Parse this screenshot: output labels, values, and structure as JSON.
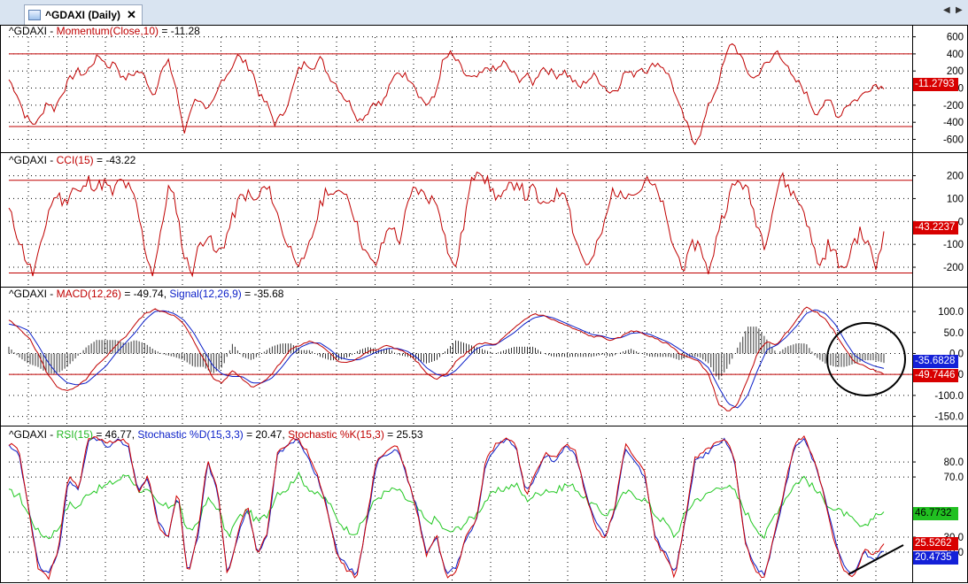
{
  "tab": {
    "label": "^GDAXI (Daily)",
    "close": "✕",
    "left_arrow": "◀",
    "right_arrow": "▶"
  },
  "colors": {
    "momentum": "#c00000",
    "cci": "#c00000",
    "macd": "#c00000",
    "signal": "#0a1ec8",
    "hist": "#000000",
    "rsi": "#22c822",
    "stochd": "#0a1ec8",
    "stochk": "#d00000",
    "grid_dot": "#000000"
  },
  "panes": {
    "momentum": {
      "title": [
        {
          "t": "^GDAXI - ",
          "c": "blk"
        },
        {
          "t": "Momentum(Close,10)",
          "c": "red"
        },
        {
          "t": " = -11.28",
          "c": "blk"
        }
      ],
      "tick_labels": [
        "600",
        "400",
        "200",
        "0",
        "-200",
        "-400",
        "-600"
      ],
      "ticks": [
        600,
        400,
        200,
        0,
        -200,
        -400,
        -600
      ],
      "ylim": [
        -750,
        720
      ],
      "ref_lines": [
        400,
        -450
      ],
      "last_label": "-11.2793",
      "last_value": -11.28
    },
    "cci": {
      "title": [
        {
          "t": "^GDAXI - ",
          "c": "blk"
        },
        {
          "t": "CCI(15)",
          "c": "red"
        },
        {
          "t": " = -43.22",
          "c": "blk"
        }
      ],
      "tick_labels": [
        "200",
        "100",
        "0",
        "-100",
        "-200"
      ],
      "ticks": [
        200,
        100,
        0,
        -100,
        -200
      ],
      "ylim": [
        -285,
        295
      ],
      "ref_lines": [
        180,
        -225
      ],
      "last_label": "-43.2237",
      "last_value": -43.22
    },
    "macd": {
      "title": [
        {
          "t": "^GDAXI - ",
          "c": "blk"
        },
        {
          "t": "MACD(12,26)",
          "c": "red"
        },
        {
          "t": " = -49.74, ",
          "c": "blk"
        },
        {
          "t": "Signal(12,26,9)",
          "c": "blu"
        },
        {
          "t": " = -35.68",
          "c": "blk"
        }
      ],
      "tick_labels": [
        "100.0",
        "50.0",
        "0.0",
        "-50.0",
        "-100.0",
        "-150.0"
      ],
      "ticks": [
        100,
        50,
        0,
        -50,
        -100,
        -150
      ],
      "ylim": [
        -172,
        155
      ],
      "ref_lines": [
        -50
      ],
      "last_macd_label": "-49.7446",
      "last_signal_label": "-35.6828",
      "last_macd": -49.74,
      "last_signal": -35.68
    },
    "rsi": {
      "title": [
        {
          "t": "^GDAXI - ",
          "c": "blk"
        },
        {
          "t": "RSI(15)",
          "c": "grn"
        },
        {
          "t": " = 46.77, ",
          "c": "blk"
        },
        {
          "t": "Stochastic %D(15,3,3)",
          "c": "blu"
        },
        {
          "t": " = 20.47, ",
          "c": "blk"
        },
        {
          "t": "Stochastic %K(15,3)",
          "c": "red"
        },
        {
          "t": " = 25.53",
          "c": "blk"
        }
      ],
      "tick_labels": [
        "80.0",
        "70.0",
        "30.0",
        "20.0"
      ],
      "ticks": [
        80,
        70,
        30,
        20
      ],
      "ylim": [
        0,
        103
      ],
      "last_rsi_label": "46.7732",
      "last_d_label": "20.4735",
      "last_k_label": "25.5262",
      "last_rsi": 46.77,
      "last_d": 20.47,
      "last_k": 25.53
    }
  },
  "chart_data": [
    {
      "type": "line",
      "title": "^GDAXI - Momentum(Close,10) = -11.28",
      "series": [
        {
          "name": "Momentum(Close,10)",
          "values": [
            100,
            -50,
            -300,
            -420,
            -380,
            -150,
            -250,
            -50,
            100,
            200,
            150,
            300,
            380,
            250,
            300,
            100,
            150,
            200,
            120,
            -100,
            200,
            300,
            0,
            -550,
            -200,
            -100,
            -300,
            -150,
            100,
            200,
            380,
            300,
            200,
            -100,
            -200,
            -420,
            -300,
            -100,
            200,
            300,
            250,
            350,
            150,
            50,
            -100,
            -200,
            -380,
            -300,
            -150,
            -200,
            0,
            200,
            150,
            100,
            -100,
            -200,
            -100,
            300,
            400,
            300,
            150,
            100,
            150,
            250,
            200,
            300,
            200,
            100,
            150,
            50,
            250,
            200,
            150,
            200,
            100,
            0,
            100,
            150,
            50,
            -50,
            0,
            200,
            150,
            250,
            200,
            300,
            250,
            100,
            -200,
            -400,
            -650,
            -500,
            -200,
            0,
            300,
            550,
            400,
            200,
            100,
            250,
            300,
            450,
            300,
            100,
            50,
            -100,
            -300,
            -200,
            -150,
            -350,
            -200,
            -150,
            -100,
            0,
            50,
            -11.28
          ]
        }
      ],
      "ylim": [
        -750,
        720
      ]
    },
    {
      "type": "line",
      "title": "^GDAXI - CCI(15) = -43.22",
      "series": [
        {
          "name": "CCI(15)",
          "values": [
            50,
            -50,
            -150,
            -230,
            -120,
            50,
            120,
            80,
            150,
            120,
            180,
            150,
            170,
            120,
            180,
            150,
            80,
            -100,
            -230,
            -80,
            150,
            80,
            -150,
            -220,
            -100,
            -50,
            -150,
            -100,
            0,
            100,
            120,
            80,
            150,
            120,
            0,
            -100,
            -150,
            -200,
            -80,
            50,
            150,
            100,
            150,
            80,
            -50,
            -150,
            -200,
            -100,
            0,
            -100,
            50,
            150,
            120,
            100,
            80,
            -100,
            -220,
            -50,
            150,
            250,
            180,
            120,
            100,
            150,
            180,
            100,
            150,
            50,
            100,
            120,
            150,
            -50,
            -150,
            -200,
            -100,
            0,
            150,
            100,
            150,
            120,
            180,
            150,
            100,
            -50,
            -150,
            -200,
            -100,
            -100,
            -250,
            -50,
            50,
            150,
            180,
            120,
            0,
            -100,
            50,
            200,
            150,
            100,
            50,
            -100,
            -200,
            -100,
            -150,
            -230,
            -100,
            -50,
            -100,
            -200,
            -43.22
          ]
        }
      ],
      "ylim": [
        -285,
        295
      ]
    },
    {
      "type": "line",
      "title": "^GDAXI - MACD(12,26) = -49.74, Signal(12,26,9) = -35.68",
      "series": [
        {
          "name": "MACD(12,26)",
          "values": [
            80,
            60,
            40,
            0,
            -50,
            -80,
            -90,
            -80,
            -60,
            -30,
            -10,
            20,
            40,
            70,
            95,
            105,
            100,
            90,
            70,
            30,
            -10,
            -60,
            -70,
            -40,
            -60,
            -80,
            -70,
            -50,
            -20,
            10,
            20,
            30,
            20,
            0,
            -20,
            -20,
            -10,
            5,
            10,
            20,
            10,
            0,
            -20,
            -50,
            -60,
            -50,
            -20,
            0,
            20,
            25,
            20,
            40,
            60,
            80,
            95,
            90,
            80,
            70,
            60,
            50,
            40,
            40,
            30,
            40,
            55,
            50,
            40,
            30,
            20,
            0,
            -10,
            -20,
            -50,
            -120,
            -140,
            -120,
            -60,
            0,
            30,
            20,
            50,
            80,
            110,
            100,
            80,
            50,
            10,
            -20,
            -30,
            -40,
            -49.74
          ]
        },
        {
          "name": "Signal(12,26,9)",
          "values": [
            70,
            65,
            55,
            20,
            -20,
            -50,
            -70,
            -75,
            -70,
            -50,
            -30,
            0,
            25,
            50,
            80,
            100,
            102,
            95,
            80,
            50,
            10,
            -30,
            -50,
            -55,
            -55,
            -70,
            -70,
            -60,
            -35,
            -5,
            15,
            25,
            25,
            10,
            -10,
            -15,
            -15,
            -5,
            5,
            12,
            12,
            5,
            -10,
            -35,
            -50,
            -55,
            -40,
            -15,
            10,
            20,
            20,
            35,
            50,
            70,
            85,
            90,
            85,
            75,
            65,
            55,
            45,
            42,
            35,
            38,
            48,
            50,
            45,
            35,
            25,
            10,
            -5,
            -15,
            -35,
            -80,
            -120,
            -130,
            -100,
            -40,
            10,
            20,
            40,
            65,
            95,
            105,
            95,
            70,
            30,
            -5,
            -20,
            -30,
            -35.68
          ]
        }
      ],
      "ylim": [
        -172,
        155
      ]
    },
    {
      "type": "line",
      "title": "^GDAXI - RSI(15) = 46.77, Stochastic %D(15,3,3) = 20.47, Stochastic %K(15,3) = 25.53",
      "series": [
        {
          "name": "RSI(15)",
          "values": [
            60,
            58,
            45,
            33,
            30,
            36,
            52,
            50,
            60,
            62,
            65,
            68,
            72,
            62,
            60,
            52,
            50,
            55,
            32,
            40,
            55,
            50,
            30,
            42,
            48,
            40,
            45,
            60,
            62,
            72,
            64,
            58,
            55,
            42,
            35,
            33,
            45,
            56,
            60,
            62,
            55,
            50,
            40,
            42,
            33,
            35,
            40,
            45,
            55,
            60,
            63,
            65,
            55,
            58,
            62,
            60,
            65,
            63,
            55,
            50,
            45,
            50,
            60,
            58,
            55,
            45,
            40,
            30,
            45,
            55,
            57,
            62,
            65,
            60,
            48,
            38,
            30,
            45,
            55,
            65,
            70,
            62,
            55,
            48,
            46,
            40,
            35,
            45,
            46.77
          ]
        },
        {
          "name": "Stochastic %D(15,3,3)",
          "values": [
            90,
            85,
            50,
            10,
            5,
            20,
            70,
            60,
            95,
            95,
            90,
            95,
            90,
            60,
            70,
            40,
            30,
            60,
            5,
            30,
            80,
            60,
            5,
            30,
            50,
            20,
            30,
            85,
            90,
            95,
            85,
            70,
            50,
            20,
            10,
            5,
            40,
            80,
            85,
            90,
            70,
            50,
            20,
            30,
            5,
            10,
            30,
            40,
            80,
            90,
            95,
            90,
            60,
            70,
            85,
            80,
            90,
            85,
            60,
            40,
            30,
            50,
            90,
            80,
            70,
            30,
            20,
            5,
            40,
            80,
            85,
            90,
            95,
            80,
            30,
            10,
            5,
            30,
            60,
            90,
            95,
            80,
            60,
            30,
            10,
            5,
            20,
            15,
            20.47
          ]
        },
        {
          "name": "Stochastic %K(15,3)",
          "values": [
            92,
            88,
            48,
            8,
            3,
            22,
            72,
            62,
            96,
            96,
            92,
            96,
            92,
            58,
            72,
            38,
            28,
            62,
            3,
            32,
            82,
            62,
            3,
            32,
            52,
            18,
            32,
            87,
            92,
            96,
            87,
            72,
            48,
            18,
            8,
            3,
            42,
            82,
            87,
            92,
            72,
            48,
            18,
            32,
            3,
            8,
            32,
            42,
            82,
            92,
            96,
            92,
            58,
            72,
            87,
            82,
            92,
            87,
            58,
            38,
            28,
            52,
            92,
            82,
            72,
            28,
            18,
            3,
            42,
            82,
            87,
            92,
            96,
            82,
            28,
            8,
            3,
            32,
            62,
            92,
            96,
            82,
            58,
            28,
            8,
            3,
            22,
            18,
            25.53
          ]
        }
      ],
      "ylim": [
        0,
        103
      ]
    }
  ]
}
